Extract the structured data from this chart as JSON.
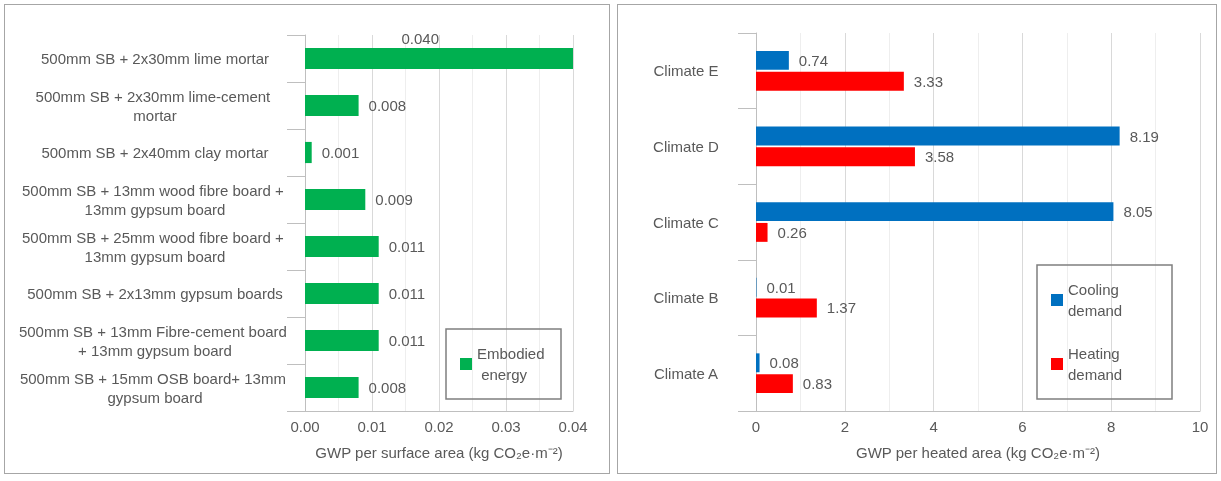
{
  "chart_data": [
    {
      "type": "bar",
      "orientation": "horizontal",
      "xlabel": "GWP per surface area (kg CO₂e·m⁻²)",
      "categories": [
        "500mm SB + 2x30mm lime mortar",
        "500mm SB + 2x30mm lime-cement mortar",
        "500mm SB + 2x40mm clay mortar",
        "500mm SB + 13mm wood fibre board + 13mm gypsum board",
        "500mm SB + 25mm wood fibre board + 13mm gypsum board",
        "500mm SB + 2x13mm gypsum boards",
        "500mm SB + 13mm Fibre-cement board + 13mm gypsum board",
        "500mm SB + 15mm OSB board+ 13mm gypsum board"
      ],
      "series": [
        {
          "name": "Embodied energy",
          "color": "#00b050",
          "values": [
            0.04,
            0.008,
            0.001,
            0.009,
            0.011,
            0.011,
            0.011,
            0.008
          ],
          "value_labels": [
            "0.040",
            "0.008",
            "0.001",
            "0.009",
            "0.011",
            "0.011",
            "0.011",
            "0.008"
          ]
        }
      ],
      "xlim": [
        0,
        0.04
      ],
      "xticks": [
        {
          "value": 0,
          "label": "0.00"
        },
        {
          "value": 0.01,
          "label": "0.01"
        },
        {
          "value": 0.02,
          "label": "0.02"
        },
        {
          "value": 0.03,
          "label": "0.03"
        },
        {
          "value": 0.04,
          "label": "0.04"
        }
      ],
      "grid": "x",
      "legend": "bottom right"
    },
    {
      "type": "bar",
      "orientation": "horizontal",
      "xlabel": "GWP per heated area (kg CO₂e·m⁻²)",
      "categories": [
        "Climate E",
        "Climate D",
        "Climate C",
        "Climate B",
        "Climate A"
      ],
      "series": [
        {
          "name": "Cooling demand",
          "color": "#0070c0",
          "values": [
            0.74,
            8.19,
            8.05,
            0.01,
            0.08
          ]
        },
        {
          "name": "Heating demand",
          "color": "#ff0000",
          "values": [
            3.33,
            3.58,
            0.26,
            1.37,
            0.83
          ]
        }
      ],
      "xlim": [
        0,
        10
      ],
      "xticks": [
        0,
        2,
        4,
        6,
        8,
        10
      ],
      "grid": "x",
      "legend": "bottom right",
      "data_labels": true
    }
  ]
}
